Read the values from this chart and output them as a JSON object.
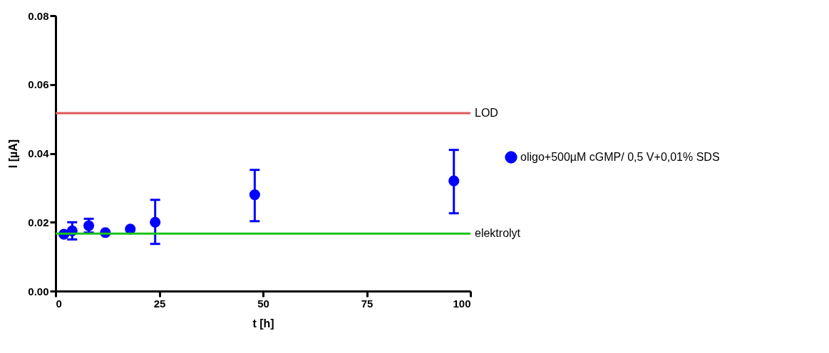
{
  "chart_data": {
    "type": "scatter",
    "xlabel": "t [h]",
    "ylabel": "I [µA]",
    "x": [
      2,
      4,
      8,
      12,
      18,
      24,
      48,
      96
    ],
    "series": [
      {
        "name": "oligo+500µM cGMP/ 0,5 V+0,01% SDS",
        "color": "#0000ff",
        "values": [
          0.0165,
          0.0175,
          0.019,
          0.017,
          0.018,
          0.02,
          0.028,
          0.032
        ],
        "errors": [
          null,
          0.0025,
          0.002,
          null,
          null,
          [
            0.0137,
            0.0265
          ],
          [
            0.0203,
            0.0352
          ],
          [
            0.0226,
            0.041
          ]
        ]
      }
    ],
    "xlim": [
      0,
      100
    ],
    "xticks": [
      0,
      25,
      50,
      75,
      100
    ],
    "ylim": [
      0,
      0.08
    ],
    "yticks": [
      {
        "value": 0,
        "label": "0.00"
      },
      {
        "value": 0.02,
        "label": "0.02"
      },
      {
        "value": 0.04,
        "label": "0.04"
      },
      {
        "value": 0.06,
        "label": "0.06"
      },
      {
        "value": 0.08,
        "label": "0.08"
      }
    ],
    "ref_lines": [
      {
        "axis": "y",
        "value": 0.0517,
        "label": "LOD",
        "color": "#e05a5a"
      },
      {
        "axis": "y",
        "value": 0.0167,
        "label": "elektrolyt",
        "color": "#19c319"
      }
    ],
    "grid": false,
    "legend": "right",
    "marker": "circle"
  }
}
